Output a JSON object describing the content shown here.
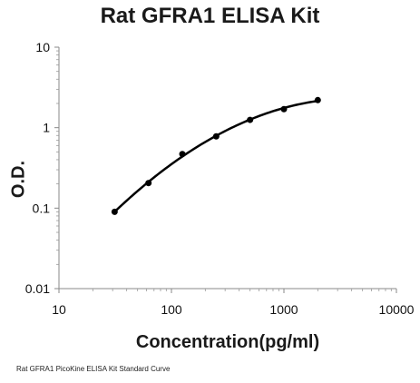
{
  "chart_data": {
    "type": "scatter",
    "title": "Rat GFRA1 ELISA Kit",
    "xlabel": "Concentration(pg/ml)",
    "ylabel": "O.D.",
    "xscale": "log",
    "yscale": "log",
    "xlim": [
      10,
      10000
    ],
    "ylim": [
      0.01,
      10
    ],
    "x_ticks": [
      "10",
      "100",
      "1000",
      "10000"
    ],
    "y_ticks": [
      "0.01",
      "0.1",
      "1",
      "10"
    ],
    "grid": false,
    "legend": "none",
    "series": [
      {
        "points": [
          {
            "x": 31.25,
            "y": 0.09
          },
          {
            "x": 62.5,
            "y": 0.205
          },
          {
            "x": 125,
            "y": 0.47
          },
          {
            "x": 250,
            "y": 0.78
          },
          {
            "x": 500,
            "y": 1.25
          },
          {
            "x": 1000,
            "y": 1.7
          },
          {
            "x": 2000,
            "y": 2.2
          }
        ],
        "fit_curve": true,
        "color": "#000000"
      }
    ],
    "caption": "Rat GFRA1 PicoKine ELISA Kit Standard Curve"
  }
}
